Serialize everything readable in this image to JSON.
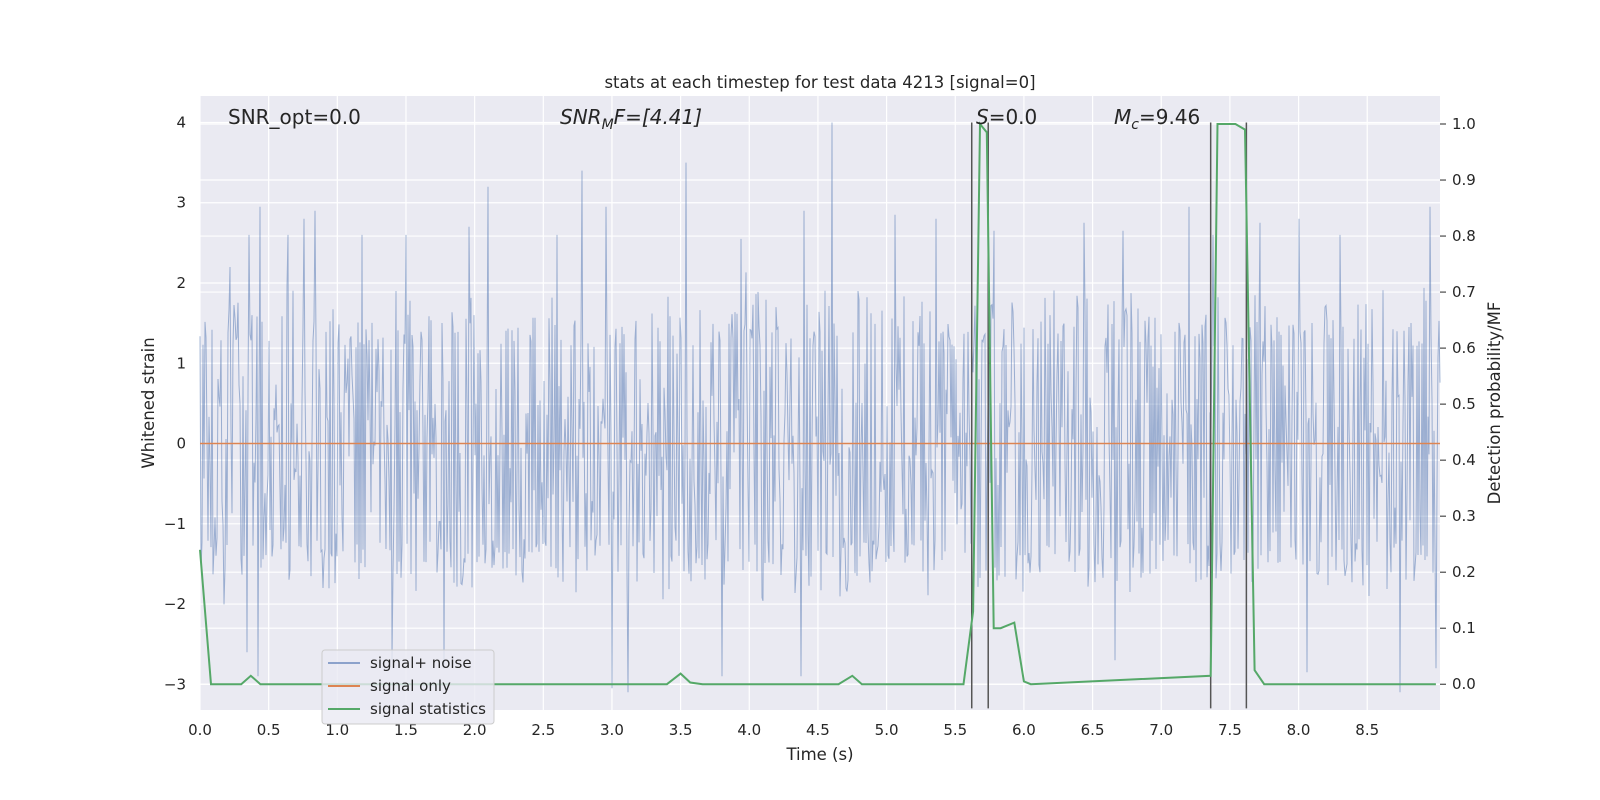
{
  "chart_data": {
    "type": "line",
    "title": "stats at each timestep for test data 4213 [signal=0]",
    "xlabel": "Time (s)",
    "ylabel": "Whitened strain",
    "y2label": "Detection probability/MF",
    "xlim": [
      0.0,
      9.03
    ],
    "ylim": [
      -3.32,
      4.33
    ],
    "y2lim": [
      -0.046,
      1.05
    ],
    "x_ticks": [
      0.0,
      0.5,
      1.0,
      1.5,
      2.0,
      2.5,
      3.0,
      3.5,
      4.0,
      4.5,
      5.0,
      5.5,
      6.0,
      6.5,
      7.0,
      7.5,
      8.0,
      8.5
    ],
    "x_tick_labels": [
      "0.0",
      "0.5",
      "1.0",
      "1.5",
      "2.0",
      "2.5",
      "3.0",
      "3.5",
      "4.0",
      "4.5",
      "5.0",
      "5.5",
      "6.0",
      "6.5",
      "7.0",
      "7.5",
      "8.0",
      "8.5"
    ],
    "y_ticks": [
      -3,
      -2,
      -1,
      0,
      1,
      2,
      3,
      4
    ],
    "y_tick_labels": [
      "−3",
      "−2",
      "−1",
      "0",
      "1",
      "2",
      "3",
      "4"
    ],
    "y2_ticks": [
      0.0,
      0.1,
      0.2,
      0.3,
      0.4,
      0.5,
      0.6,
      0.7,
      0.8,
      0.9,
      1.0
    ],
    "y2_tick_labels": [
      "0.0",
      "0.1",
      "0.2",
      "0.3",
      "0.4",
      "0.5",
      "0.6",
      "0.7",
      "0.8",
      "0.9",
      "1.0"
    ],
    "grid": true,
    "legend_position": "lower-left",
    "colors": {
      "background": "#eaeaf2",
      "grid": "#ffffff",
      "noise": "#4c72b0",
      "signal_only": "#dd8452",
      "statistics": "#55a868",
      "marker_lines": "#555555",
      "text": "#262626"
    },
    "series": [
      {
        "name": "signal+ noise",
        "axis": "left",
        "description_values": "dense whitened noise, mostly within -1.7 to 1.7, spikes up to 4.0",
        "spikes": [
          {
            "x": 0.22,
            "y": 2.2
          },
          {
            "x": 0.36,
            "y": 2.6
          },
          {
            "x": 0.44,
            "y": 2.95
          },
          {
            "x": 0.64,
            "y": 2.6
          },
          {
            "x": 0.76,
            "y": 2.8
          },
          {
            "x": 0.84,
            "y": 2.9
          },
          {
            "x": 1.18,
            "y": 2.6
          },
          {
            "x": 1.5,
            "y": 2.6
          },
          {
            "x": 1.96,
            "y": 2.7
          },
          {
            "x": 2.1,
            "y": 3.2
          },
          {
            "x": 2.6,
            "y": 2.6
          },
          {
            "x": 2.78,
            "y": 3.4
          },
          {
            "x": 2.96,
            "y": 2.95
          },
          {
            "x": 3.54,
            "y": 3.5
          },
          {
            "x": 3.94,
            "y": 2.55
          },
          {
            "x": 4.4,
            "y": 2.9
          },
          {
            "x": 4.6,
            "y": 4.0
          },
          {
            "x": 5.06,
            "y": 2.85
          },
          {
            "x": 5.36,
            "y": 2.8
          },
          {
            "x": 5.78,
            "y": 2.65
          },
          {
            "x": 6.44,
            "y": 2.75
          },
          {
            "x": 6.72,
            "y": 2.65
          },
          {
            "x": 7.2,
            "y": 2.95
          },
          {
            "x": 7.38,
            "y": 2.6
          },
          {
            "x": 7.72,
            "y": 2.75
          },
          {
            "x": 8.0,
            "y": 2.8
          },
          {
            "x": 8.3,
            "y": 2.6
          },
          {
            "x": 8.96,
            "y": 2.95
          }
        ],
        "dips": [
          {
            "x": 0.34,
            "y": -2.6
          },
          {
            "x": 0.42,
            "y": -2.9
          },
          {
            "x": 1.4,
            "y": -2.7
          },
          {
            "x": 1.78,
            "y": -2.8
          },
          {
            "x": 3.0,
            "y": -3.05
          },
          {
            "x": 3.12,
            "y": -3.1
          },
          {
            "x": 3.8,
            "y": -2.9
          },
          {
            "x": 4.38,
            "y": -2.9
          },
          {
            "x": 6.66,
            "y": -2.7
          },
          {
            "x": 8.06,
            "y": -2.85
          },
          {
            "x": 8.74,
            "y": -3.1
          },
          {
            "x": 9.0,
            "y": -2.8
          }
        ]
      },
      {
        "name": "signal only",
        "axis": "left",
        "x": [
          0.0,
          9.03
        ],
        "y": [
          0.0,
          0.0
        ]
      },
      {
        "name": "signal statistics",
        "axis": "right",
        "x": [
          0.0,
          0.08,
          0.3,
          0.37,
          0.44,
          3.4,
          3.5,
          3.57,
          3.66,
          4.65,
          4.75,
          4.82,
          5.56,
          5.63,
          5.68,
          5.73,
          5.78,
          5.83,
          5.93,
          6.0,
          6.05,
          7.36,
          7.41,
          7.46,
          7.54,
          7.61,
          7.68,
          7.75,
          9.0
        ],
        "y": [
          0.24,
          0.0,
          0.0,
          0.015,
          0.0,
          0.0,
          0.019,
          0.003,
          0.0,
          0.0,
          0.015,
          0.0,
          0.0,
          0.13,
          1.0,
          0.985,
          0.1,
          0.1,
          0.11,
          0.005,
          0.0,
          0.015,
          1.0,
          1.0,
          1.0,
          0.99,
          0.025,
          0.0,
          0.0
        ]
      }
    ],
    "marker_lines_x": [
      5.62,
      5.74,
      7.36,
      7.62
    ],
    "marker_lines_y_top": 4.0,
    "marker_lines_y_bottom": -3.3,
    "annotations": {
      "snr_opt": "SNR_opt=0.0",
      "snr_mf_main": "SNR",
      "snr_mf_sub": "M",
      "snr_mf_tail": "F=[4.41]",
      "s_italic": "S",
      "s_value": "=0.0",
      "mc_main": "M",
      "mc_sub": "c",
      "mc_value": "=9.46"
    }
  }
}
